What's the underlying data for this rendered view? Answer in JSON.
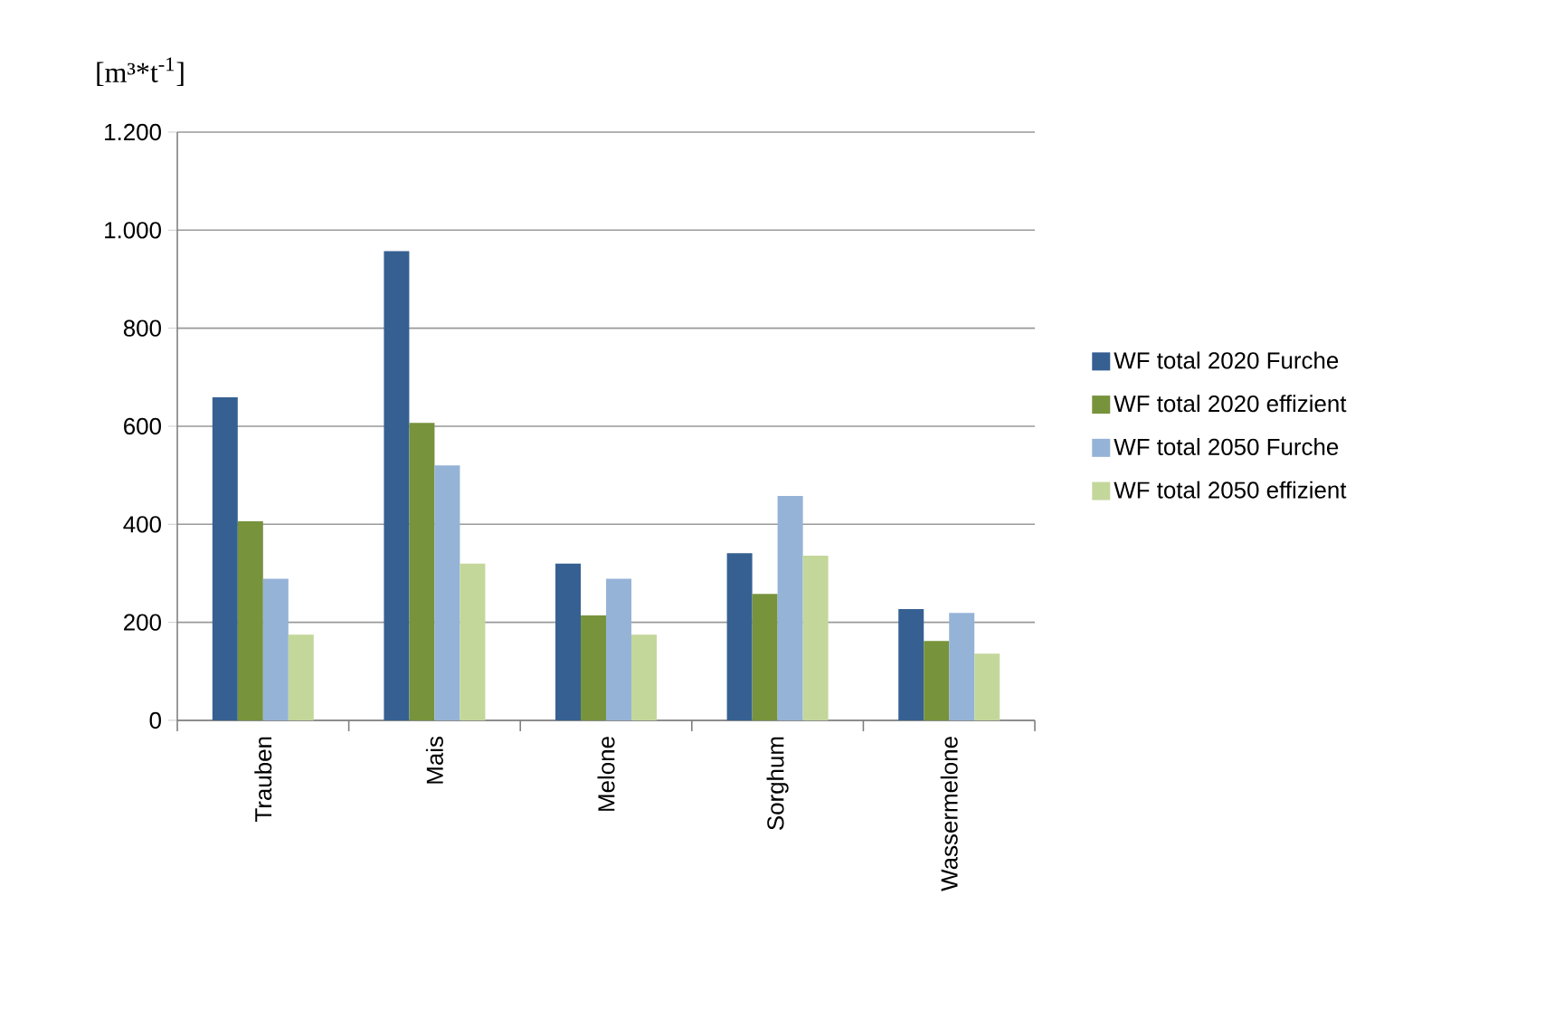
{
  "chart_data": {
    "type": "bar",
    "ylabel": "[m³*t$^{-1}$]",
    "categories": [
      "Trauben",
      "Mais",
      "Melone",
      "Sorghum",
      "Wassermelone"
    ],
    "series": [
      {
        "name": "WF total 2020 Furche",
        "color": "#366092",
        "values": [
          659,
          957,
          320,
          341,
          227
        ]
      },
      {
        "name": "WF total 2020 effizient",
        "color": "#77933c",
        "values": [
          406,
          607,
          214,
          258,
          162
        ]
      },
      {
        "name": "WF total 2050 Furche",
        "color": "#95b3d7",
        "values": [
          289,
          520,
          289,
          458,
          219
        ]
      },
      {
        "name": "WF total 2050 effizient",
        "color": "#c4d79b",
        "values": [
          175,
          320,
          175,
          336,
          136
        ]
      }
    ],
    "ylim": [
      0,
      1200
    ],
    "yticks": [
      0,
      200,
      400,
      600,
      800,
      {
        "value": 1000,
        "label": "1.000"
      },
      {
        "value": 1200,
        "label": "1.200"
      }
    ],
    "grid": "y",
    "legend": "right"
  }
}
